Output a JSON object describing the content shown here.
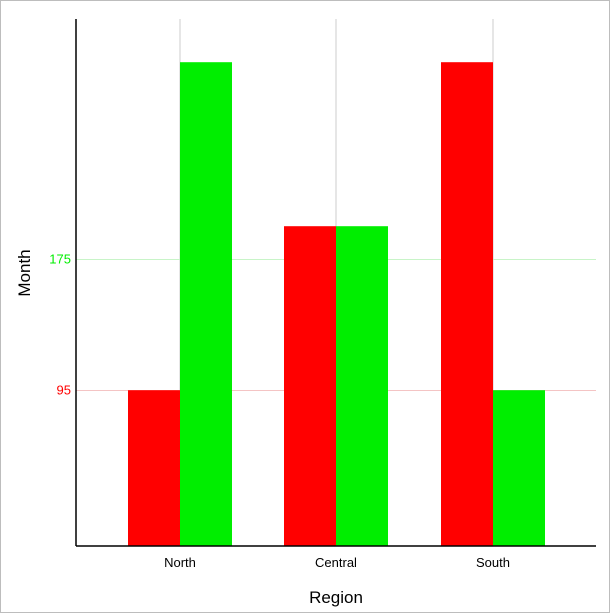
{
  "chart_data": {
    "type": "bar",
    "xlabel": "Region",
    "ylabel": "Month",
    "categories": [
      "North",
      "Central",
      "South"
    ],
    "series": [
      {
        "color": "#ff0000",
        "values": [
          95,
          195,
          295
        ]
      },
      {
        "color": "#00ee00",
        "values": [
          295,
          195,
          95
        ]
      }
    ],
    "y_ticks": [
      {
        "value": 95,
        "label": "95",
        "color": "#ff0000",
        "gridline_color": "#f4c4c4"
      },
      {
        "value": 175,
        "label": "175",
        "color": "#00ee00",
        "gridline_color": "#c8f4c8"
      }
    ],
    "ylim": [
      0,
      300
    ],
    "grid": {
      "vertical_category_lines": true,
      "vertical_color": "#cccccc"
    }
  }
}
